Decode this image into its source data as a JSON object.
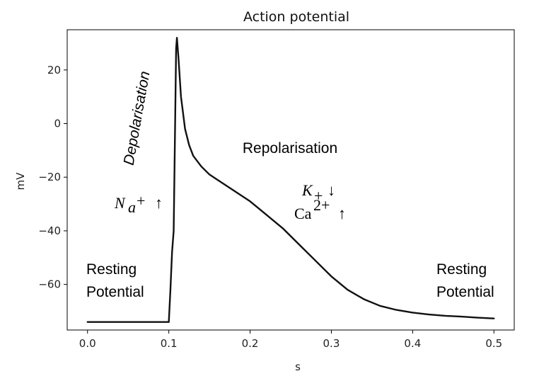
{
  "chart_data": {
    "type": "line",
    "title": "Action potential",
    "xlabel": "s",
    "ylabel": "mV",
    "xlim": [
      -0.025,
      0.525
    ],
    "ylim": [
      -77,
      35
    ],
    "xticks": [
      0.0,
      0.1,
      0.2,
      0.3,
      0.4,
      0.5
    ],
    "xtick_labels": [
      "0.0",
      "0.1",
      "0.2",
      "0.3",
      "0.4",
      "0.5"
    ],
    "yticks": [
      20,
      0,
      -20,
      -40,
      -60
    ],
    "ytick_labels": [
      "20",
      "0",
      "−20",
      "−40",
      "−60"
    ],
    "grid": false,
    "legend": false,
    "line_color": "#111111",
    "series": [
      {
        "x": [
          0.0,
          0.05,
          0.1,
          0.102,
          0.104,
          0.106,
          0.108,
          0.109,
          0.11,
          0.112,
          0.115,
          0.12,
          0.125,
          0.13,
          0.14,
          0.15,
          0.16,
          0.18,
          0.2,
          0.22,
          0.24,
          0.26,
          0.28,
          0.3,
          0.32,
          0.34,
          0.36,
          0.38,
          0.4,
          0.42,
          0.44,
          0.46,
          0.48,
          0.5
        ],
        "y": [
          -74,
          -74,
          -74,
          -62,
          -48,
          -40,
          5,
          28,
          32,
          24,
          10,
          -2,
          -8,
          -12,
          -16,
          -19,
          -21,
          -25,
          -29,
          -34,
          -39,
          -45,
          -51,
          -57,
          -62,
          -65.5,
          -68,
          -69.5,
          -70.5,
          -71.2,
          -71.7,
          -72,
          -72.4,
          -72.7
        ]
      }
    ],
    "annotations": {
      "depolarisation": "Depolarisation",
      "repolarisation": "Repolarisation",
      "resting_left_line1": "Resting",
      "resting_left_line2": "Potential",
      "resting_right_line1": "Resting",
      "resting_right_line2": "Potential",
      "na_base": "N",
      "na_sub": "a",
      "na_sup": "+",
      "na_arrow": "↑",
      "k_base": "K",
      "k_sub": "+",
      "k_arrow": "↓",
      "ca_base": "Ca",
      "ca_sup": "2+",
      "ca_arrow": "↑"
    }
  }
}
